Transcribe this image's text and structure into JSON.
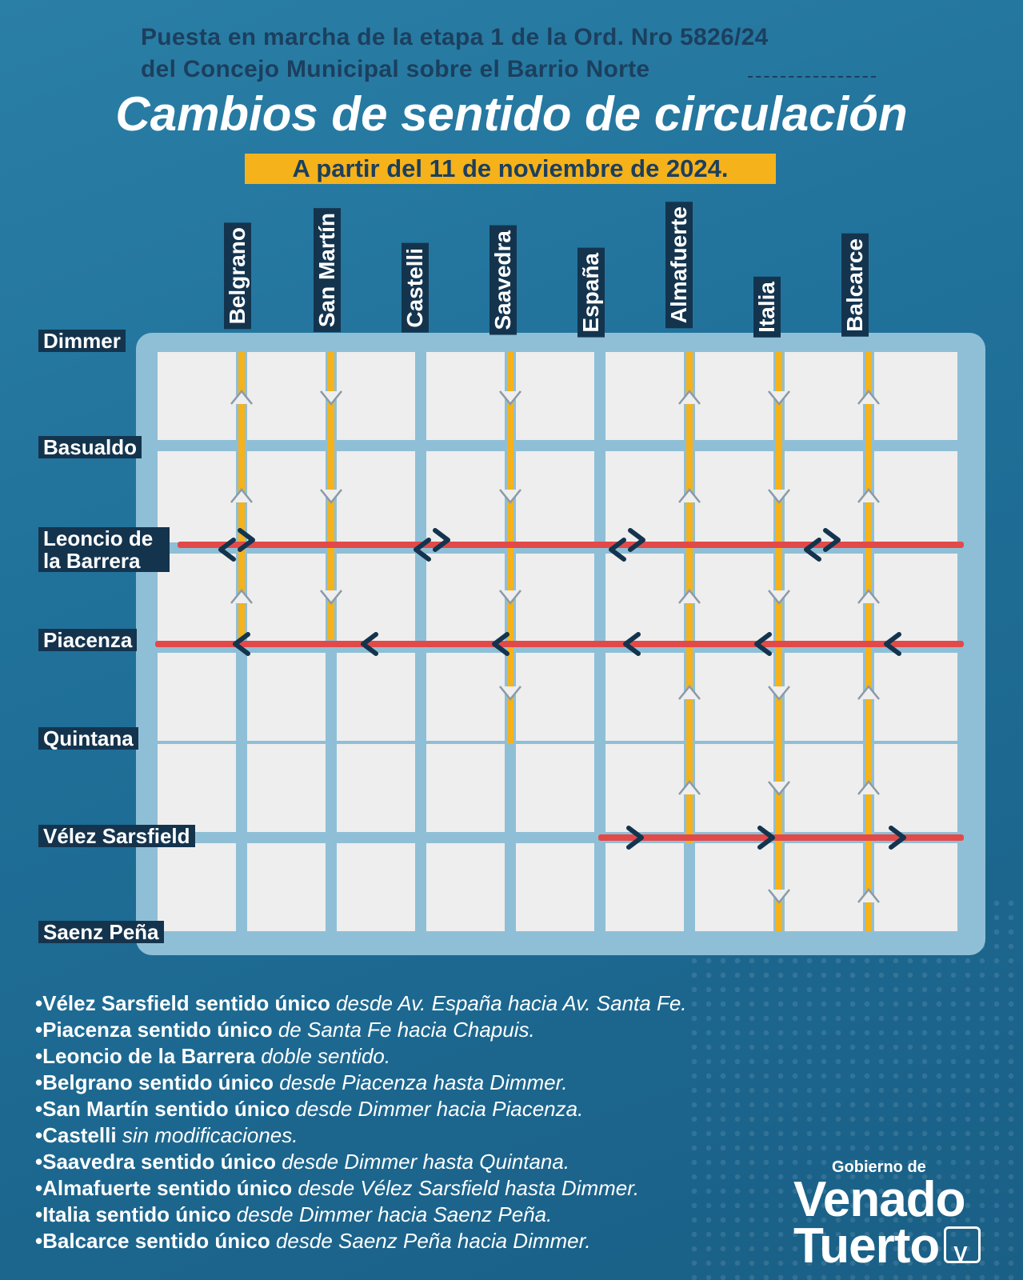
{
  "header": {
    "line1": "Puesta en marcha de la etapa 1 de la Ord. Nro 5826/24",
    "line2": "del Concejo Municipal sobre el Barrio Norte",
    "title": "Cambios de sentido de circulación",
    "date_badge": "A partir del 11 de noviembre de 2024."
  },
  "colors": {
    "background": "#1f6f98",
    "map_panel": "#8fbfd6",
    "block": "#eeeeee",
    "vertical_route": "#f5b21a",
    "horizontal_route": "#e24a4a",
    "arrow": "#14344e",
    "label_bg": "#14344e"
  },
  "vertical_streets": [
    {
      "name": "Belgrano",
      "direction": "up"
    },
    {
      "name": "San Martín",
      "direction": "down"
    },
    {
      "name": "Castelli",
      "direction": "none"
    },
    {
      "name": "Saavedra",
      "direction": "down"
    },
    {
      "name": "España",
      "direction": "none"
    },
    {
      "name": "Almafuerte",
      "direction": "up"
    },
    {
      "name": "Italia",
      "direction": "down"
    },
    {
      "name": "Balcarce",
      "direction": "up"
    }
  ],
  "horizontal_streets": [
    {
      "name": "Dimmer"
    },
    {
      "name": "Basualdo"
    },
    {
      "name": "Leoncio de la Barrera",
      "direction": "both"
    },
    {
      "name": "Piacenza",
      "direction": "left"
    },
    {
      "name": "Quintana"
    },
    {
      "name": "Vélez Sarsfield",
      "direction": "right"
    },
    {
      "name": "Saenz Peña"
    }
  ],
  "legend": [
    {
      "bold": "•Vélez Sarsfield sentido único",
      "italic": " desde Av. España hacia Av. Santa Fe."
    },
    {
      "bold": "•Piacenza sentido único",
      "italic": " de Santa Fe hacia Chapuis."
    },
    {
      "bold": "•Leoncio de la Barrera",
      "italic": " doble sentido."
    },
    {
      "bold": "•Belgrano sentido único",
      "italic": " desde Piacenza hasta Dimmer."
    },
    {
      "bold": "•San Martín sentido único",
      "italic": " desde Dimmer hacia Piacenza."
    },
    {
      "bold": "•Castelli",
      "italic": " sin modificaciones."
    },
    {
      "bold": "•Saavedra sentido único",
      "italic": " desde Dimmer hasta Quintana."
    },
    {
      "bold": "•Almafuerte sentido único",
      "italic": " desde Vélez Sarsfield hasta Dimmer."
    },
    {
      "bold": "•Italia sentido único",
      "italic": " desde Dimmer hacia Saenz Peña."
    },
    {
      "bold": "•Balcarce sentido único",
      "italic": " desde Saenz Peña hacia Dimmer."
    }
  ],
  "logo": {
    "small": "Gobierno de",
    "line1": "Venado",
    "line2": "Tuerto"
  }
}
